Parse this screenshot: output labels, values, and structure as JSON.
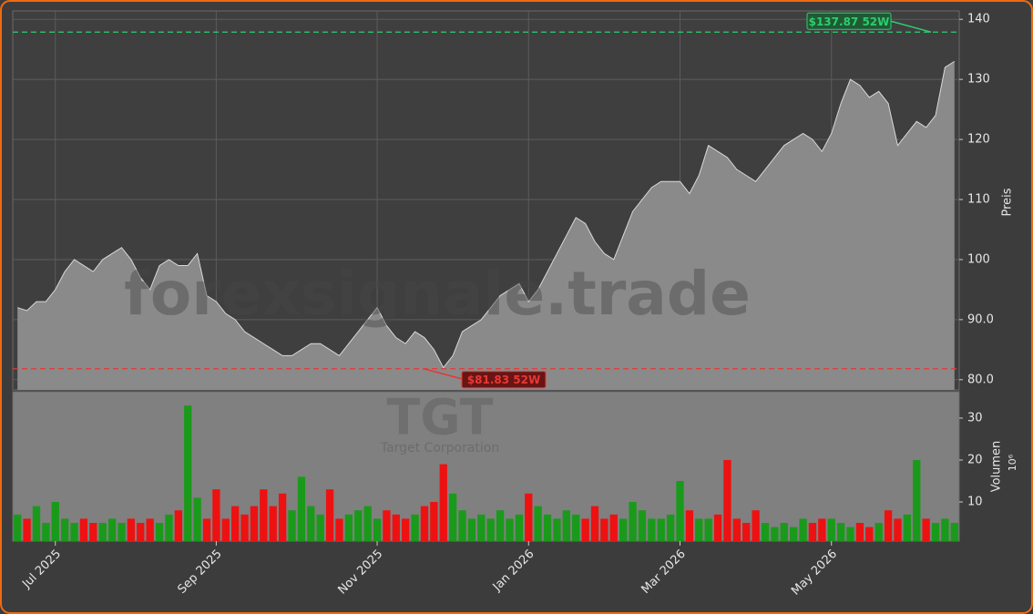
{
  "chart_data": [
    {
      "type": "area",
      "watermark": "forexsignale.trade",
      "ylabel": "Preis",
      "color": "#8a8a8a",
      "line_color": "#d9d9d9",
      "values": [
        92,
        91.5,
        93,
        93,
        95,
        98,
        100,
        99,
        98,
        100,
        101,
        102,
        100,
        97,
        95,
        99,
        100,
        99,
        99,
        101,
        94,
        93,
        91,
        90,
        88,
        87,
        86,
        85,
        84,
        84,
        85,
        86,
        86,
        85,
        84,
        86,
        88,
        90,
        92,
        89,
        87,
        86,
        88,
        87,
        85,
        82,
        84,
        88,
        89,
        90,
        92,
        94,
        95,
        96,
        93,
        95,
        98,
        101,
        104,
        107,
        106,
        103,
        101,
        100,
        104,
        108,
        110,
        112,
        113,
        113,
        113,
        111,
        114,
        119,
        118,
        117,
        115,
        114,
        113,
        115,
        117,
        119,
        120,
        121,
        120,
        118,
        121,
        126,
        130,
        129,
        127,
        128,
        126,
        119,
        121,
        123,
        122,
        124,
        132,
        133
      ],
      "ylim": [
        78.3,
        141.4
      ],
      "yticks": [
        {
          "value": 80,
          "label": "80.0"
        },
        {
          "value": 90,
          "label": "90.0"
        },
        100,
        110,
        120,
        130,
        140
      ],
      "grid": true,
      "hlines": [
        {
          "value": 137.87,
          "label": "$137.87 52W",
          "color": "#2ecc71"
        },
        {
          "value": 81.83,
          "label": "$81.83 52W",
          "color": "#e53935"
        }
      ]
    },
    {
      "type": "bar",
      "watermark": "TGT",
      "subtitle": "Target Corporation",
      "ylabel": "Volumen",
      "ylabel_unit": "10⁶",
      "up_color": "#1a9a1a",
      "down_color": "#ee1111",
      "categories": [
        null,
        null,
        null,
        null,
        "Jul 2025",
        null,
        null,
        null,
        null,
        null,
        null,
        null,
        null,
        null,
        null,
        null,
        null,
        null,
        null,
        null,
        null,
        "Sep 2025",
        null,
        null,
        null,
        null,
        null,
        null,
        null,
        null,
        null,
        null,
        null,
        null,
        null,
        null,
        null,
        null,
        "Nov 2025",
        null,
        null,
        null,
        null,
        null,
        null,
        null,
        null,
        null,
        null,
        null,
        null,
        null,
        null,
        null,
        "Jan 2026",
        null,
        null,
        null,
        null,
        null,
        null,
        null,
        null,
        null,
        null,
        null,
        null,
        null,
        null,
        null,
        "Mar 2026",
        null,
        null,
        null,
        null,
        null,
        null,
        null,
        null,
        null,
        null,
        null,
        null,
        null,
        null,
        null,
        "May 2026",
        null,
        null,
        null,
        null,
        null,
        null,
        null,
        null,
        null,
        null,
        null,
        null,
        null
      ],
      "values": [
        7,
        6,
        9,
        5,
        10,
        6,
        5,
        6,
        5,
        5,
        6,
        5,
        6,
        5,
        6,
        5,
        7,
        8,
        33,
        11,
        6,
        13,
        6,
        9,
        7,
        9,
        13,
        9,
        12,
        8,
        16,
        9,
        7,
        13,
        6,
        7,
        8,
        9,
        6,
        8,
        7,
        6,
        7,
        9,
        10,
        19,
        12,
        8,
        6,
        7,
        6,
        8,
        6,
        7,
        12,
        9,
        7,
        6,
        8,
        7,
        6,
        9,
        6,
        7,
        6,
        10,
        8,
        6,
        6,
        7,
        15,
        8,
        6,
        6,
        7,
        20,
        6,
        5,
        8,
        5,
        4,
        5,
        4,
        6,
        5,
        6,
        6,
        5,
        4,
        5,
        4,
        5,
        8,
        6,
        7,
        20,
        6,
        5,
        6,
        5
      ],
      "ylim": [
        0.65,
        36.3
      ],
      "yticks": [
        10,
        20,
        30
      ]
    }
  ]
}
